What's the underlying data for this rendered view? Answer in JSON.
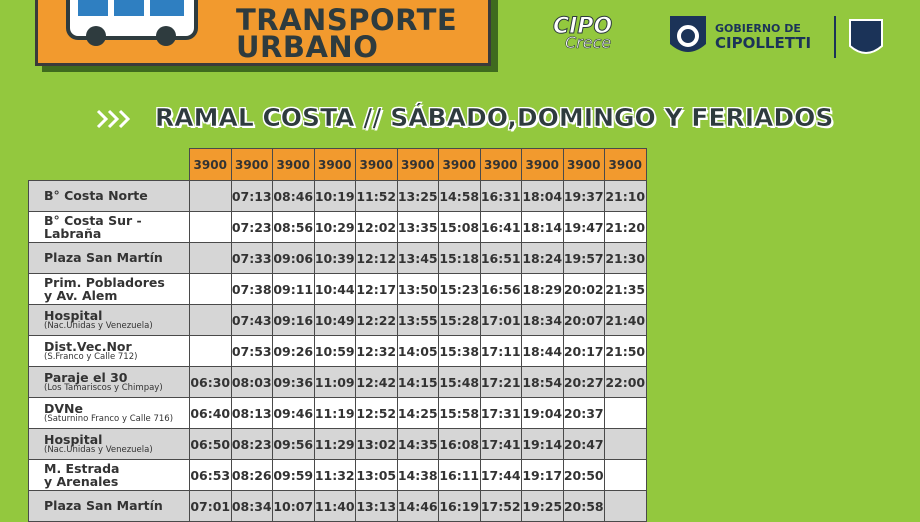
{
  "header": {
    "title_line1": "TRANSPORTE",
    "title_line2": "URBANO"
  },
  "logos": {
    "cipo": "CIPO",
    "crece": "Crece",
    "gov_line1": "GOBIERNO DE",
    "gov_line2": "CIPOLLETTI"
  },
  "subtitle": "RAMAL COSTA // SÁBADO,DOMINGO Y FERIADOS",
  "table": {
    "columns": [
      "3900",
      "3900",
      "3900",
      "3900",
      "3900",
      "3900",
      "3900",
      "3900",
      "3900",
      "3900",
      "3900"
    ],
    "rows": [
      {
        "stop": [
          "B° Costa Norte"
        ],
        "note": null,
        "times": [
          null,
          "07:13",
          "08:46",
          "10:19",
          "11:52",
          "13:25",
          "14:58",
          "16:31",
          "18:04",
          "19:37",
          "21:10"
        ]
      },
      {
        "stop": [
          "B° Costa Sur -",
          "Labraña"
        ],
        "note": null,
        "times": [
          null,
          "07:23",
          "08:56",
          "10:29",
          "12:02",
          "13:35",
          "15:08",
          "16:41",
          "18:14",
          "19:47",
          "21:20"
        ]
      },
      {
        "stop": [
          "Plaza San Martín"
        ],
        "note": null,
        "times": [
          null,
          "07:33",
          "09:06",
          "10:39",
          "12:12",
          "13:45",
          "15:18",
          "16:51",
          "18:24",
          "19:57",
          "21:30"
        ]
      },
      {
        "stop": [
          "Prim. Pobladores",
          "y Av. Alem"
        ],
        "note": null,
        "times": [
          null,
          "07:38",
          "09:11",
          "10:44",
          "12:17",
          "13:50",
          "15:23",
          "16:56",
          "18:29",
          "20:02",
          "21:35"
        ]
      },
      {
        "stop": [
          "Hospital"
        ],
        "note": "(Nac.Unidas y Venezuela)",
        "times": [
          null,
          "07:43",
          "09:16",
          "10:49",
          "12:22",
          "13:55",
          "15:28",
          "17:01",
          "18:34",
          "20:07",
          "21:40"
        ]
      },
      {
        "stop": [
          "Dist.Vec.Nor"
        ],
        "note": "(S.Franco y Calle 712)",
        "times": [
          null,
          "07:53",
          "09:26",
          "10:59",
          "12:32",
          "14:05",
          "15:38",
          "17:11",
          "18:44",
          "20:17",
          "21:50"
        ]
      },
      {
        "stop": [
          "Paraje el 30"
        ],
        "note": "(Los Tamariscos y Chimpay)",
        "times": [
          "06:30",
          "08:03",
          "09:36",
          "11:09",
          "12:42",
          "14:15",
          "15:48",
          "17:21",
          "18:54",
          "20:27",
          "22:00"
        ]
      },
      {
        "stop": [
          "DVNe"
        ],
        "note": "(Saturnino Franco y Calle 716)",
        "times": [
          "06:40",
          "08:13",
          "09:46",
          "11:19",
          "12:52",
          "14:25",
          "15:58",
          "17:31",
          "19:04",
          "20:37",
          null
        ]
      },
      {
        "stop": [
          "Hospital"
        ],
        "note": "(Nac.Unidas y Venezuela)",
        "times": [
          "06:50",
          "08:23",
          "09:56",
          "11:29",
          "13:02",
          "14:35",
          "16:08",
          "17:41",
          "19:14",
          "20:47",
          null
        ]
      },
      {
        "stop": [
          "M. Estrada",
          "y Arenales"
        ],
        "note": null,
        "times": [
          "06:53",
          "08:26",
          "09:59",
          "11:32",
          "13:05",
          "14:38",
          "16:11",
          "17:44",
          "19:17",
          "20:50",
          null
        ]
      },
      {
        "stop": [
          "Plaza San Martín"
        ],
        "note": null,
        "times": [
          "07:01",
          "08:34",
          "10:07",
          "11:40",
          "13:13",
          "14:46",
          "16:19",
          "17:52",
          "19:25",
          "20:58",
          null
        ]
      }
    ]
  }
}
